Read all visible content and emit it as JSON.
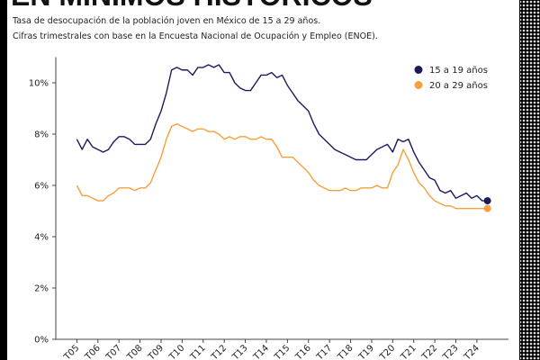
{
  "chart_data": {
    "type": "line",
    "title": "EN MÍNIMOS HISTÓRICOS",
    "subtitle": [
      "Tasa de desocupación de la población joven en México de 15 a 29 años.",
      "Cifras trimestrales con base en la Encuesta Nacional de Ocupación y Empleo (ENOE)."
    ],
    "x": [
      2005,
      2005.25,
      2005.5,
      2005.75,
      2006,
      2006.25,
      2006.5,
      2006.75,
      2007,
      2007.25,
      2007.5,
      2007.75,
      2008,
      2008.25,
      2008.5,
      2008.75,
      2009,
      2009.25,
      2009.5,
      2009.75,
      2010,
      2010.25,
      2010.5,
      2010.75,
      2011,
      2011.25,
      2011.5,
      2011.75,
      2012,
      2012.25,
      2012.5,
      2012.75,
      2013,
      2013.25,
      2013.5,
      2013.75,
      2014,
      2014.25,
      2014.5,
      2014.75,
      2015,
      2015.25,
      2015.5,
      2015.75,
      2016,
      2016.25,
      2016.5,
      2016.75,
      2017,
      2017.25,
      2017.5,
      2017.75,
      2018,
      2018.25,
      2018.5,
      2018.75,
      2019,
      2019.25,
      2019.5,
      2019.75,
      2020,
      2020.25,
      2020.5,
      2020.75,
      2021,
      2021.25,
      2021.5,
      2021.75,
      2022,
      2022.25,
      2022.5,
      2022.75,
      2023,
      2023.25,
      2023.5,
      2023.75,
      2024,
      2024.25,
      2024.5
    ],
    "series": [
      {
        "name": "15 a 19 años",
        "color": "#1b1a5c",
        "values": [
          7.8,
          7.4,
          7.8,
          7.5,
          7.4,
          7.3,
          7.4,
          7.7,
          7.9,
          7.9,
          7.8,
          7.6,
          7.6,
          7.6,
          7.8,
          8.4,
          8.9,
          9.6,
          10.5,
          10.6,
          10.5,
          10.5,
          10.3,
          10.6,
          10.6,
          10.7,
          10.6,
          10.7,
          10.4,
          10.4,
          10.0,
          9.8,
          9.7,
          9.7,
          10.0,
          10.3,
          10.3,
          10.4,
          10.2,
          10.3,
          9.9,
          9.6,
          9.3,
          9.1,
          8.9,
          8.4,
          8.0,
          7.8,
          7.6,
          7.4,
          7.3,
          7.2,
          7.1,
          7.0,
          7.0,
          7.0,
          7.2,
          7.4,
          7.5,
          7.6,
          7.3,
          7.8,
          7.7,
          7.8,
          7.3,
          6.9,
          6.6,
          6.3,
          6.2,
          5.8,
          5.7,
          5.8,
          5.5,
          5.6,
          5.7,
          5.5,
          5.6,
          5.4,
          5.4
        ]
      },
      {
        "name": "20 a 29 años",
        "color": "#f5a03c",
        "values": [
          6.0,
          5.6,
          5.6,
          5.5,
          5.4,
          5.4,
          5.6,
          5.7,
          5.9,
          5.9,
          5.9,
          5.8,
          5.9,
          5.9,
          6.1,
          6.6,
          7.1,
          7.8,
          8.3,
          8.4,
          8.3,
          8.2,
          8.1,
          8.2,
          8.2,
          8.1,
          8.1,
          8.0,
          7.8,
          7.9,
          7.8,
          7.9,
          7.9,
          7.8,
          7.8,
          7.9,
          7.8,
          7.8,
          7.5,
          7.1,
          7.1,
          7.1,
          6.9,
          6.7,
          6.5,
          6.2,
          6.0,
          5.9,
          5.8,
          5.8,
          5.8,
          5.9,
          5.8,
          5.8,
          5.9,
          5.9,
          5.9,
          6.0,
          5.9,
          5.9,
          6.5,
          6.8,
          7.4,
          7.0,
          6.5,
          6.1,
          5.9,
          5.6,
          5.4,
          5.3,
          5.2,
          5.2,
          5.1,
          5.1,
          5.1,
          5.1,
          5.1,
          5.1,
          5.1
        ]
      }
    ],
    "xlim": [
      2004,
      2025.5
    ],
    "xticks": [
      {
        "value": 2005,
        "label": "T05"
      },
      {
        "value": 2006,
        "label": "T06"
      },
      {
        "value": 2007,
        "label": "T07"
      },
      {
        "value": 2008,
        "label": "T08"
      },
      {
        "value": 2009,
        "label": "T09"
      },
      {
        "value": 2010,
        "label": "T10"
      },
      {
        "value": 2011,
        "label": "T11"
      },
      {
        "value": 2012,
        "label": "T12"
      },
      {
        "value": 2013,
        "label": "T13"
      },
      {
        "value": 2014,
        "label": "T14"
      },
      {
        "value": 2015,
        "label": "T15"
      },
      {
        "value": 2016,
        "label": "T16"
      },
      {
        "value": 2017,
        "label": "T17"
      },
      {
        "value": 2018,
        "label": "T18"
      },
      {
        "value": 2019,
        "label": "T19"
      },
      {
        "value": 2020,
        "label": "T20"
      },
      {
        "value": 2021,
        "label": "T21"
      },
      {
        "value": 2022,
        "label": "T22"
      },
      {
        "value": 2023,
        "label": "T23"
      },
      {
        "value": 2024,
        "label": "T24"
      }
    ],
    "ylim": [
      0,
      11
    ],
    "yticks": [
      {
        "value": 0,
        "label": "0%"
      },
      {
        "value": 2,
        "label": "2%"
      },
      {
        "value": 4,
        "label": "4%"
      },
      {
        "value": 6,
        "label": "6%"
      },
      {
        "value": 8,
        "label": "8%"
      },
      {
        "value": 10,
        "label": "10%"
      }
    ],
    "legend": "upper right"
  }
}
